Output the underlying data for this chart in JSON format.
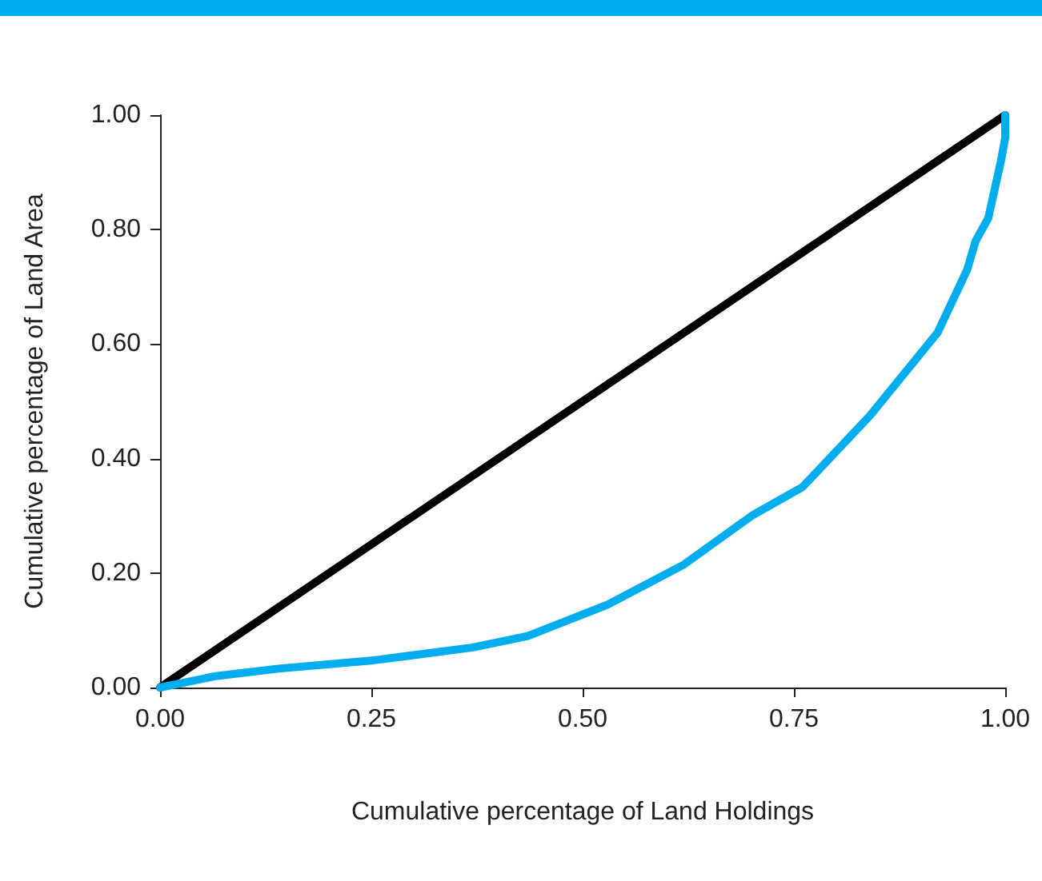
{
  "chart_data": {
    "type": "line",
    "xlabel": "Cumulative percentage of Land Holdings",
    "ylabel": "Cumulative percentage of Land Area",
    "xlim": [
      0,
      1
    ],
    "ylim": [
      0,
      1
    ],
    "xticks": [
      {
        "value": 0,
        "label": "0.00"
      },
      {
        "value": 0.25,
        "label": "0.25"
      },
      {
        "value": 0.5,
        "label": "0.50"
      },
      {
        "value": 0.75,
        "label": "0.75"
      },
      {
        "value": 1,
        "label": "1.00"
      }
    ],
    "yticks": [
      {
        "value": 0,
        "label": "0.00"
      },
      {
        "value": 0.2,
        "label": "0.20"
      },
      {
        "value": 0.4,
        "label": "0.40"
      },
      {
        "value": 0.6,
        "label": "0.60"
      },
      {
        "value": 0.8,
        "label": "0.80"
      },
      {
        "value": 1,
        "label": "1.00"
      }
    ],
    "grid": false,
    "marker": "none",
    "line_style": "solid",
    "series": [
      {
        "color": "#000000",
        "x": [
          0,
          1
        ],
        "values": [
          0,
          1
        ]
      },
      {
        "color": "#00aeef",
        "x": [
          0,
          0.066,
          0.14,
          0.25,
          0.37,
          0.435,
          0.53,
          0.62,
          0.7,
          0.76,
          0.84,
          0.92,
          0.955,
          0.965,
          0.98,
          0.995,
          1,
          1
        ],
        "values": [
          0,
          0.02,
          0.033,
          0.047,
          0.07,
          0.09,
          0.145,
          0.215,
          0.3,
          0.35,
          0.475,
          0.62,
          0.73,
          0.78,
          0.82,
          0.92,
          0.96,
          1
        ]
      }
    ]
  }
}
